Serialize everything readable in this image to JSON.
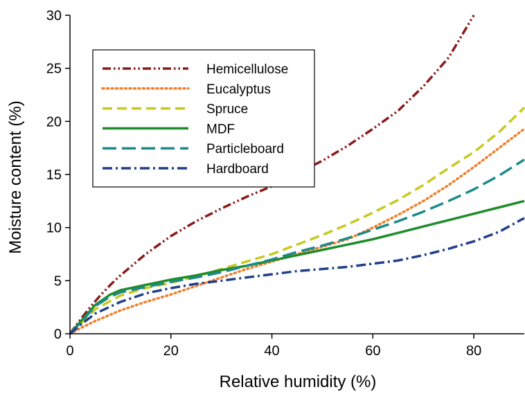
{
  "chart_data": {
    "type": "line",
    "xlabel": "Relative humidity (%)",
    "ylabel": "Moisture content (%)",
    "xlim": [
      0,
      90
    ],
    "ylim": [
      0,
      30
    ],
    "xticks": [
      0,
      20,
      40,
      60,
      80
    ],
    "yticks": [
      0,
      5,
      10,
      15,
      20,
      25,
      30
    ],
    "legend_position": "top-left",
    "grid": false,
    "series": [
      {
        "name": "Hemicellulose",
        "color": "#8b1a1a",
        "dash": "dash-dot-dot",
        "points": [
          [
            0,
            0
          ],
          [
            2,
            1.3
          ],
          [
            4,
            2.5
          ],
          [
            6,
            3.6
          ],
          [
            8,
            4.6
          ],
          [
            10,
            5.5
          ],
          [
            15,
            7.5
          ],
          [
            20,
            9.2
          ],
          [
            25,
            10.6
          ],
          [
            30,
            11.8
          ],
          [
            35,
            12.9
          ],
          [
            40,
            13.9
          ],
          [
            45,
            15.1
          ],
          [
            50,
            16.3
          ],
          [
            55,
            17.7
          ],
          [
            60,
            19.3
          ],
          [
            65,
            21.0
          ],
          [
            70,
            23.3
          ],
          [
            75,
            26.0
          ],
          [
            80,
            30.0
          ]
        ]
      },
      {
        "name": "Eucalyptus",
        "color": "#f07f2a",
        "dash": "dotted",
        "points": [
          [
            0,
            0
          ],
          [
            2,
            0.5
          ],
          [
            5,
            1.2
          ],
          [
            10,
            2.2
          ],
          [
            15,
            3.0
          ],
          [
            20,
            3.7
          ],
          [
            25,
            4.5
          ],
          [
            30,
            5.3
          ],
          [
            35,
            6.1
          ],
          [
            40,
            6.8
          ],
          [
            45,
            7.5
          ],
          [
            50,
            8.2
          ],
          [
            55,
            8.9
          ],
          [
            60,
            10.0
          ],
          [
            65,
            11.2
          ],
          [
            70,
            12.5
          ],
          [
            75,
            14.0
          ],
          [
            80,
            15.7
          ],
          [
            85,
            17.5
          ],
          [
            90,
            19.3
          ]
        ]
      },
      {
        "name": "Spruce",
        "color": "#c8c81e",
        "dash": "dashed",
        "points": [
          [
            0,
            0
          ],
          [
            2,
            0.9
          ],
          [
            5,
            2.3
          ],
          [
            10,
            3.6
          ],
          [
            15,
            4.3
          ],
          [
            20,
            4.8
          ],
          [
            25,
            5.4
          ],
          [
            30,
            6.1
          ],
          [
            35,
            6.8
          ],
          [
            40,
            7.5
          ],
          [
            45,
            8.4
          ],
          [
            50,
            9.3
          ],
          [
            55,
            10.3
          ],
          [
            60,
            11.4
          ],
          [
            65,
            12.6
          ],
          [
            70,
            14.0
          ],
          [
            75,
            15.6
          ],
          [
            80,
            17.1
          ],
          [
            85,
            19.0
          ],
          [
            90,
            21.3
          ]
        ]
      },
      {
        "name": "MDF",
        "color": "#1f8c2a",
        "dash": "solid",
        "points": [
          [
            0,
            0
          ],
          [
            2,
            1.1
          ],
          [
            5,
            2.7
          ],
          [
            8,
            3.7
          ],
          [
            10,
            4.1
          ],
          [
            15,
            4.6
          ],
          [
            20,
            5.1
          ],
          [
            25,
            5.5
          ],
          [
            30,
            6.0
          ],
          [
            35,
            6.4
          ],
          [
            40,
            6.9
          ],
          [
            45,
            7.4
          ],
          [
            50,
            7.9
          ],
          [
            55,
            8.4
          ],
          [
            60,
            8.9
          ],
          [
            65,
            9.5
          ],
          [
            70,
            10.1
          ],
          [
            75,
            10.7
          ],
          [
            80,
            11.3
          ],
          [
            85,
            11.9
          ],
          [
            90,
            12.5
          ]
        ]
      },
      {
        "name": "Particleboard",
        "color": "#1a8a8a",
        "dash": "long-dash",
        "points": [
          [
            0,
            0
          ],
          [
            2,
            1.0
          ],
          [
            5,
            2.6
          ],
          [
            8,
            3.5
          ],
          [
            10,
            3.9
          ],
          [
            15,
            4.4
          ],
          [
            20,
            4.9
          ],
          [
            25,
            5.3
          ],
          [
            30,
            5.8
          ],
          [
            35,
            6.4
          ],
          [
            40,
            7.0
          ],
          [
            45,
            7.7
          ],
          [
            50,
            8.3
          ],
          [
            55,
            9.0
          ],
          [
            60,
            9.8
          ],
          [
            65,
            10.6
          ],
          [
            70,
            11.5
          ],
          [
            75,
            12.5
          ],
          [
            80,
            13.6
          ],
          [
            85,
            14.9
          ],
          [
            90,
            16.4
          ]
        ]
      },
      {
        "name": "Hardboard",
        "color": "#1f3f8a",
        "dash": "dash-dot",
        "points": [
          [
            0,
            0
          ],
          [
            2,
            0.8
          ],
          [
            5,
            1.9
          ],
          [
            10,
            3.0
          ],
          [
            15,
            3.8
          ],
          [
            20,
            4.3
          ],
          [
            25,
            4.7
          ],
          [
            30,
            5.0
          ],
          [
            35,
            5.3
          ],
          [
            40,
            5.6
          ],
          [
            45,
            5.9
          ],
          [
            50,
            6.1
          ],
          [
            55,
            6.3
          ],
          [
            60,
            6.6
          ],
          [
            65,
            6.9
          ],
          [
            70,
            7.4
          ],
          [
            75,
            8.0
          ],
          [
            80,
            8.7
          ],
          [
            85,
            9.6
          ],
          [
            90,
            10.9
          ]
        ]
      }
    ]
  }
}
